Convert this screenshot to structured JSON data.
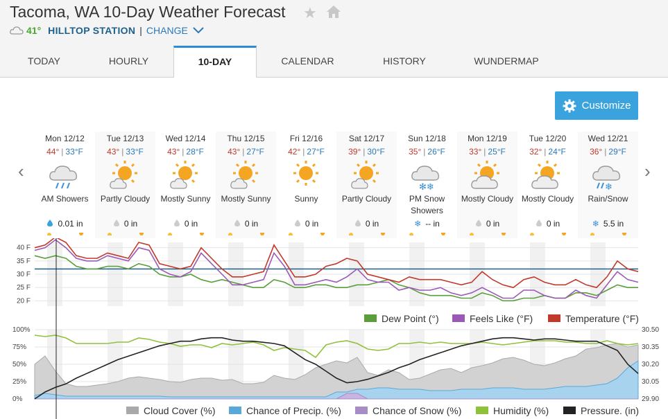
{
  "header": {
    "title": "Tacoma, WA 10-Day Weather Forecast",
    "current_temp": "41°",
    "station": "HILLTOP STATION",
    "separator": "|",
    "change_label": "CHANGE"
  },
  "tabs": [
    {
      "label": "TODAY"
    },
    {
      "label": "HOURLY"
    },
    {
      "label": "10-DAY",
      "active": true
    },
    {
      "label": "CALENDAR"
    },
    {
      "label": "HISTORY"
    },
    {
      "label": "WUNDERMAP"
    }
  ],
  "customize_label": "Customize",
  "days": [
    {
      "date": "Mon 12/12",
      "hi": "44°",
      "lo": "33°F",
      "condition": "AM Showers",
      "icon": "rain-icon",
      "precip": "0.01 in",
      "precip_type": "rain"
    },
    {
      "date": "Tue 12/13",
      "hi": "43°",
      "lo": "33°F",
      "condition": "Partly Cloudy",
      "icon": "partly-cloudy-icon",
      "precip": "0 in",
      "precip_type": "rain"
    },
    {
      "date": "Wed 12/14",
      "hi": "43°",
      "lo": "28°F",
      "condition": "Mostly Sunny",
      "icon": "mostly-sunny-icon",
      "precip": "0 in",
      "precip_type": "rain"
    },
    {
      "date": "Thu 12/15",
      "hi": "43°",
      "lo": "27°F",
      "condition": "Mostly Sunny",
      "icon": "mostly-sunny-icon",
      "precip": "0 in",
      "precip_type": "rain"
    },
    {
      "date": "Fri 12/16",
      "hi": "42°",
      "lo": "27°F",
      "condition": "Sunny",
      "icon": "sunny-icon",
      "precip": "0 in",
      "precip_type": "rain"
    },
    {
      "date": "Sat 12/17",
      "hi": "39°",
      "lo": "30°F",
      "condition": "Partly Cloudy",
      "icon": "partly-cloudy-icon",
      "precip": "0 in",
      "precip_type": "rain"
    },
    {
      "date": "Sun 12/18",
      "hi": "35°",
      "lo": "26°F",
      "condition": "PM Snow Showers",
      "icon": "snow-showers-icon",
      "precip": "-- in",
      "precip_type": "snow"
    },
    {
      "date": "Mon 12/19",
      "hi": "33°",
      "lo": "25°F",
      "condition": "Mostly Cloudy",
      "icon": "mostly-cloudy-icon",
      "precip": "0 in",
      "precip_type": "rain"
    },
    {
      "date": "Tue 12/20",
      "hi": "32°",
      "lo": "24°F",
      "condition": "Mostly Cloudy",
      "icon": "mostly-cloudy-icon",
      "precip": "0 in",
      "precip_type": "rain"
    },
    {
      "date": "Wed 12/21",
      "hi": "36°",
      "lo": "29°F",
      "condition": "Rain/Snow",
      "icon": "rain-snow-icon",
      "precip": "5.5 in",
      "precip_type": "snow"
    }
  ],
  "chart_data": [
    {
      "type": "line",
      "y_ticks": [
        "40 F",
        "35 F",
        "30 F",
        "25 F",
        "20 F"
      ],
      "ylim": [
        18,
        42
      ],
      "freezing_line": 32,
      "series": [
        {
          "name": "Dew Point (°)",
          "color": "#5a9e3a",
          "values": [
            37,
            36,
            37,
            36,
            33,
            32,
            32,
            33,
            33,
            32,
            34,
            33,
            30,
            29,
            29,
            30,
            28,
            27,
            28,
            27,
            26,
            25,
            25,
            28,
            27,
            25,
            25,
            26,
            26,
            25,
            25,
            26,
            26,
            27,
            28,
            26,
            25,
            23,
            22,
            22,
            22,
            21,
            21,
            23,
            22,
            20,
            20,
            21,
            21,
            22,
            21,
            21,
            23,
            23,
            22,
            24,
            26,
            25,
            25
          ]
        },
        {
          "name": "Feels Like (°F)",
          "color": "#9b59b6",
          "values": [
            39,
            40,
            43,
            40,
            36,
            35,
            35,
            37,
            36,
            35,
            40,
            39,
            32,
            30,
            29,
            31,
            38,
            34,
            30,
            26,
            26,
            27,
            28,
            38,
            33,
            26,
            26,
            27,
            28,
            27,
            29,
            32,
            28,
            27,
            27,
            24,
            25,
            24,
            24,
            25,
            23,
            22,
            23,
            25,
            23,
            21,
            21,
            24,
            24,
            22,
            21,
            21,
            24,
            22,
            21,
            26,
            31,
            28,
            27
          ]
        },
        {
          "name": "Temperature (°F)",
          "color": "#c0392b",
          "values": [
            40,
            41,
            44,
            42,
            37,
            36,
            36,
            38,
            37,
            36,
            42,
            41,
            34,
            33,
            32,
            33,
            40,
            36,
            32,
            29,
            29,
            30,
            31,
            41,
            35,
            29,
            29,
            30,
            33,
            34,
            36,
            35,
            30,
            29,
            28,
            27,
            29,
            28,
            28,
            28,
            27,
            26,
            27,
            31,
            28,
            26,
            25,
            28,
            29,
            27,
            26,
            26,
            28,
            26,
            25,
            29,
            35,
            32,
            31
          ]
        }
      ]
    },
    {
      "type": "area",
      "y_ticks_left": [
        "100%",
        "75%",
        "50%",
        "25%",
        "0%"
      ],
      "y_ticks_right": [
        "30.50",
        "30.35",
        "30.20",
        "30.05",
        "29.90"
      ],
      "ylim_left": [
        0,
        100
      ],
      "ylim_right": [
        29.9,
        30.5
      ],
      "series": [
        {
          "name": "Cloud Cover (%)",
          "color": "#c6c6c6",
          "values": [
            50,
            62,
            40,
            22,
            18,
            18,
            20,
            22,
            25,
            30,
            32,
            30,
            28,
            25,
            24,
            28,
            30,
            30,
            27,
            28,
            22,
            22,
            24,
            34,
            30,
            28,
            35,
            45,
            50,
            55,
            52,
            60,
            38,
            34,
            42,
            38,
            28,
            30,
            36,
            42,
            44,
            38,
            45,
            48,
            52,
            58,
            60,
            56,
            50,
            48,
            52,
            58,
            62,
            72,
            74,
            78,
            80,
            75,
            78
          ]
        },
        {
          "name": "Chance of Precip. (%)",
          "color": "#5aa8d8",
          "values": [
            5,
            8,
            6,
            4,
            4,
            4,
            4,
            4,
            4,
            4,
            4,
            4,
            4,
            3,
            3,
            3,
            3,
            3,
            3,
            3,
            3,
            3,
            3,
            3,
            3,
            3,
            3,
            3,
            3,
            10,
            10,
            14,
            14,
            16,
            16,
            14,
            14,
            14,
            12,
            12,
            12,
            14,
            14,
            14,
            16,
            16,
            16,
            14,
            14,
            14,
            16,
            18,
            18,
            18,
            20,
            22,
            30,
            45,
            55
          ]
        },
        {
          "name": "Chance of Snow (%)",
          "color": "#a78cc8",
          "values": [
            0,
            0,
            0,
            0,
            0,
            0,
            0,
            0,
            0,
            0,
            0,
            0,
            0,
            0,
            0,
            0,
            0,
            0,
            0,
            0,
            0,
            0,
            0,
            0,
            0,
            0,
            0,
            0,
            0,
            0,
            8,
            8,
            0,
            0,
            0,
            0,
            0,
            0,
            0,
            0,
            0,
            0,
            0,
            0,
            0,
            0,
            0,
            0,
            0,
            0,
            0,
            0,
            0,
            0,
            0,
            0,
            0,
            0,
            0
          ]
        },
        {
          "name": "Humidity (%)",
          "color": "#8fc23a",
          "values": [
            92,
            90,
            92,
            88,
            80,
            80,
            80,
            80,
            82,
            82,
            88,
            86,
            82,
            80,
            76,
            78,
            78,
            74,
            80,
            78,
            80,
            82,
            78,
            70,
            74,
            72,
            70,
            60,
            78,
            82,
            84,
            80,
            72,
            70,
            72,
            80,
            80,
            82,
            80,
            82,
            80,
            80,
            80,
            82,
            80,
            78,
            80,
            82,
            84,
            84,
            84,
            82,
            82,
            80,
            80,
            84,
            80,
            78,
            80
          ]
        },
        {
          "name": "Pressure. (in)",
          "color": "#222222",
          "values": [
            29.9,
            29.96,
            30.0,
            30.03,
            30.08,
            30.12,
            30.16,
            30.2,
            30.24,
            30.27,
            30.3,
            30.33,
            30.36,
            30.38,
            30.4,
            30.4,
            30.42,
            30.43,
            30.43,
            30.41,
            30.4,
            30.4,
            30.39,
            30.38,
            30.36,
            30.3,
            30.24,
            30.2,
            30.14,
            30.08,
            30.04,
            30.05,
            30.07,
            30.1,
            30.13,
            30.17,
            30.2,
            30.24,
            30.27,
            30.3,
            30.33,
            30.36,
            30.38,
            30.4,
            30.42,
            30.43,
            30.43,
            30.42,
            30.41,
            30.42,
            30.42,
            30.41,
            30.4,
            30.4,
            30.4,
            30.36,
            30.32,
            30.2,
            30.12
          ]
        }
      ]
    }
  ]
}
